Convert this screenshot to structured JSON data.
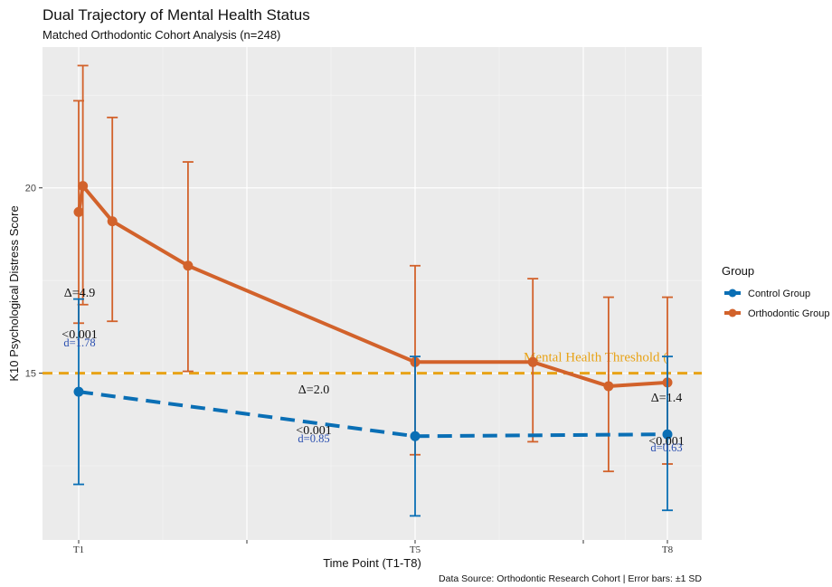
{
  "chart_data": {
    "type": "line",
    "title": "Dual Trajectory of Mental Health Status",
    "subtitle": "Matched Orthodontic Cohort Analysis (n=248)",
    "xlabel": "Time Point (T1-T8)",
    "ylabel": "K10 Psychological Distress Score",
    "xlim": [
      1,
      8
    ],
    "ylim": [
      10.5,
      23.8
    ],
    "x_ticks": [
      1,
      3,
      5,
      7,
      8
    ],
    "x_tick_labels": [
      "T1",
      "",
      "T5",
      "",
      "T8"
    ],
    "y_ticks": [
      15,
      20
    ],
    "y_tick_labels": [
      "15",
      "20"
    ],
    "grid": true,
    "legend": {
      "title": "Group",
      "position": "right"
    },
    "series": [
      {
        "name": "Control Group",
        "color": "#0a6fb5",
        "line_style": "dashed",
        "points": [
          {
            "x": 1,
            "y": 14.5,
            "sd_low": 12.0,
            "sd_high": 17.0
          },
          {
            "x": 5,
            "y": 13.3,
            "sd_low": 11.15,
            "sd_high": 15.45
          },
          {
            "x": 8,
            "y": 13.35,
            "sd_low": 11.3,
            "sd_high": 15.45
          }
        ]
      },
      {
        "name": "Orthodontic Group",
        "color": "#d2622b",
        "line_style": "solid",
        "points": [
          {
            "x": 1,
            "y": 19.35,
            "sd_low": 16.35,
            "sd_high": 22.35
          },
          {
            "x": 1.05,
            "y": 20.05,
            "sd_low": 16.85,
            "sd_high": 23.3
          },
          {
            "x": 1.4,
            "y": 19.1,
            "sd_low": 16.4,
            "sd_high": 21.9
          },
          {
            "x": 2.3,
            "y": 17.9,
            "sd_low": 15.05,
            "sd_high": 20.7
          },
          {
            "x": 5,
            "y": 15.3,
            "sd_low": 12.8,
            "sd_high": 17.9
          },
          {
            "x": 6.4,
            "y": 15.3,
            "sd_low": 13.15,
            "sd_high": 17.55
          },
          {
            "x": 7.3,
            "y": 14.65,
            "sd_low": 12.35,
            "sd_high": 17.05
          },
          {
            "x": 8,
            "y": 14.75,
            "sd_low": 12.55,
            "sd_high": 17.05
          }
        ]
      }
    ],
    "threshold": {
      "value": 15,
      "label": "Mental Health Threshold (",
      "color": "#e8a317"
    },
    "annotations": [
      {
        "x": 1,
        "delta": "Δ=4.9",
        "p": "<0.001",
        "d": "d=1.78"
      },
      {
        "x": 5,
        "delta": "Δ=2.0",
        "p": "<0.001",
        "d": "d=0.85"
      },
      {
        "x": 8,
        "delta": "Δ=1.4",
        "p": "<0.001",
        "d": "d=0.63"
      }
    ],
    "caption": "Data Source: Orthodontic Research Cohort | Error bars: ±1 SD"
  }
}
